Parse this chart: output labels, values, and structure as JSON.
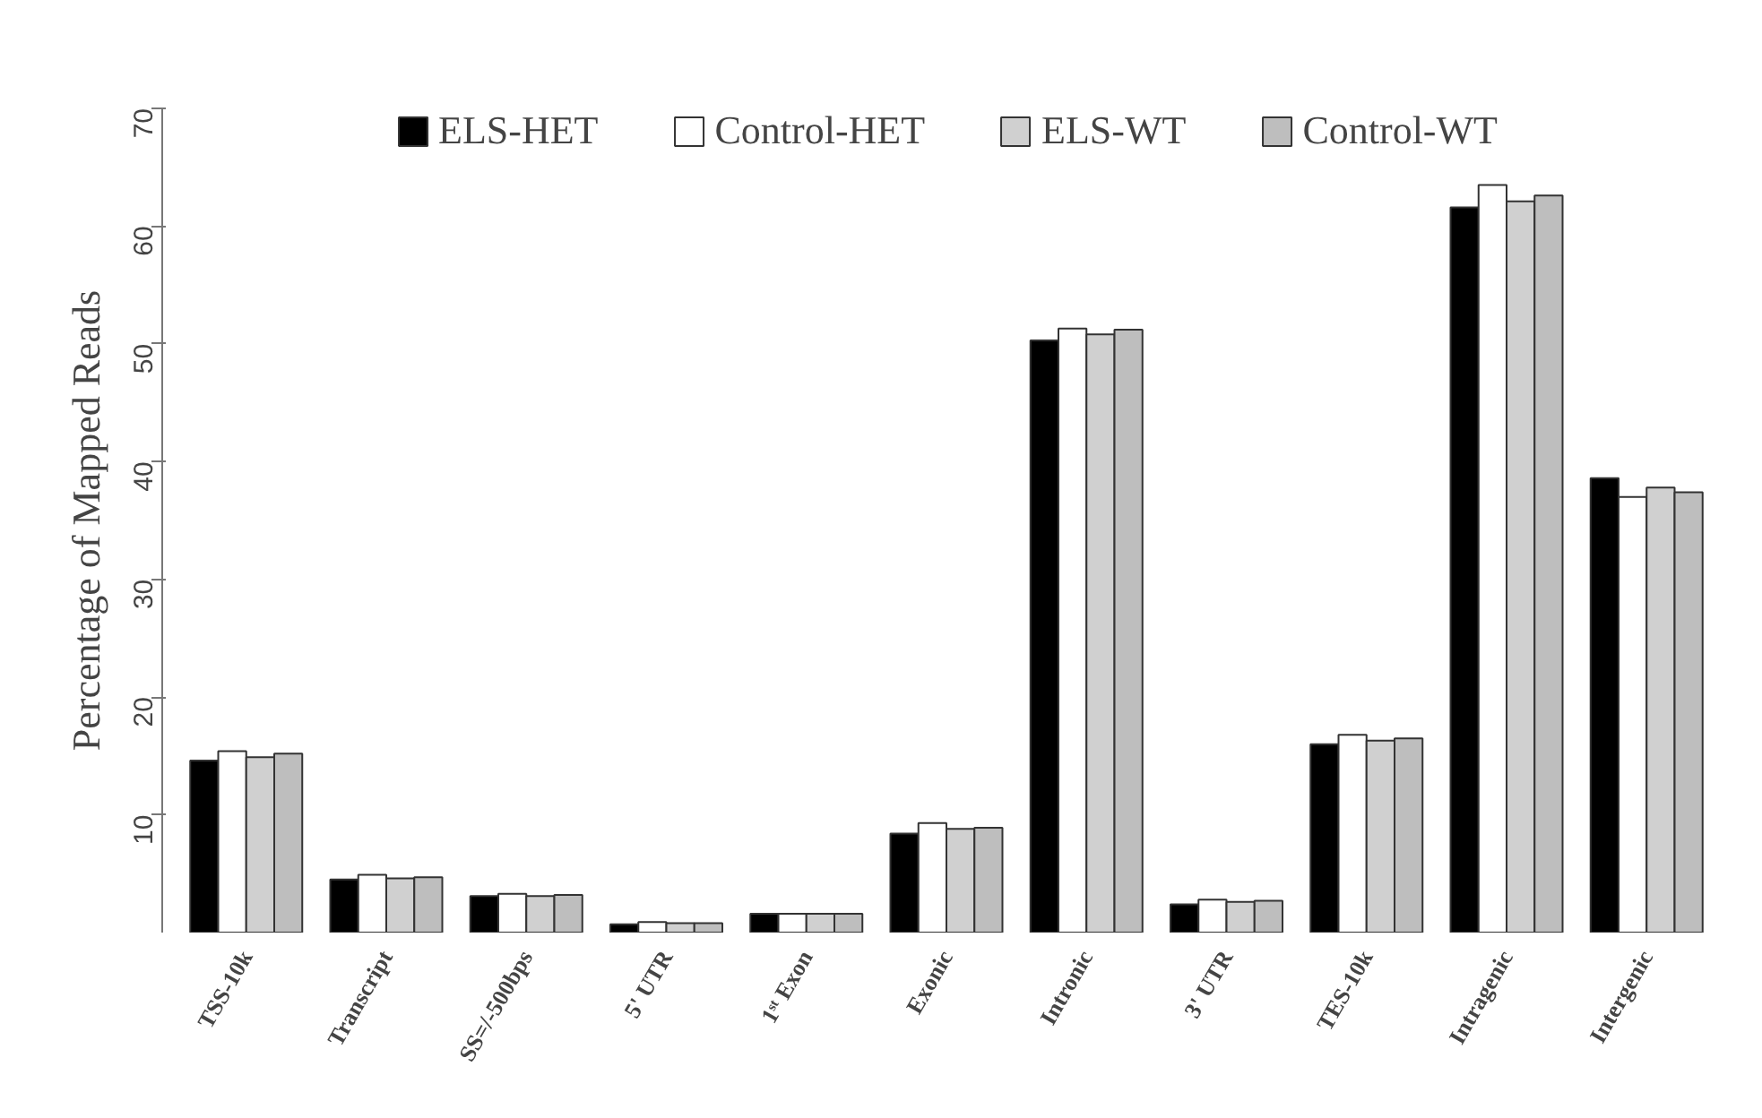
{
  "chart_data": {
    "type": "bar",
    "ylabel": "Percentage of Mapped Reads",
    "categories": [
      "TSS-10k",
      "Transcript",
      "SS=/-500bps",
      "5' UTR",
      "1ˢᵗ Exon",
      "Exonic",
      "Intronic",
      "3' UTR",
      "TES-10k",
      "Intragenic",
      "Intergenic"
    ],
    "series": [
      {
        "name": "ELS-HET",
        "color": "#000000",
        "values": [
          14.6,
          4.5,
          3.1,
          0.7,
          1.6,
          8.4,
          50.3,
          2.4,
          16.0,
          61.6,
          38.6
        ]
      },
      {
        "name": "Control-HET",
        "color": "#ffffff",
        "values": [
          15.4,
          4.9,
          3.3,
          0.9,
          1.6,
          9.3,
          51.3,
          2.8,
          16.8,
          63.5,
          37.0
        ]
      },
      {
        "name": "ELS-WT",
        "color": "#d0d0d0",
        "values": [
          14.9,
          4.6,
          3.1,
          0.8,
          1.6,
          8.8,
          50.8,
          2.6,
          16.3,
          62.1,
          37.8
        ]
      },
      {
        "name": "Control-WT",
        "color": "#bebebe",
        "values": [
          15.2,
          4.7,
          3.2,
          0.8,
          1.6,
          8.9,
          51.2,
          2.7,
          16.5,
          62.6,
          37.4
        ]
      }
    ],
    "ylim": [
      0,
      70
    ],
    "yticks": [
      10,
      20,
      30,
      40,
      50,
      60,
      70
    ],
    "grid": false,
    "legend": "top"
  }
}
